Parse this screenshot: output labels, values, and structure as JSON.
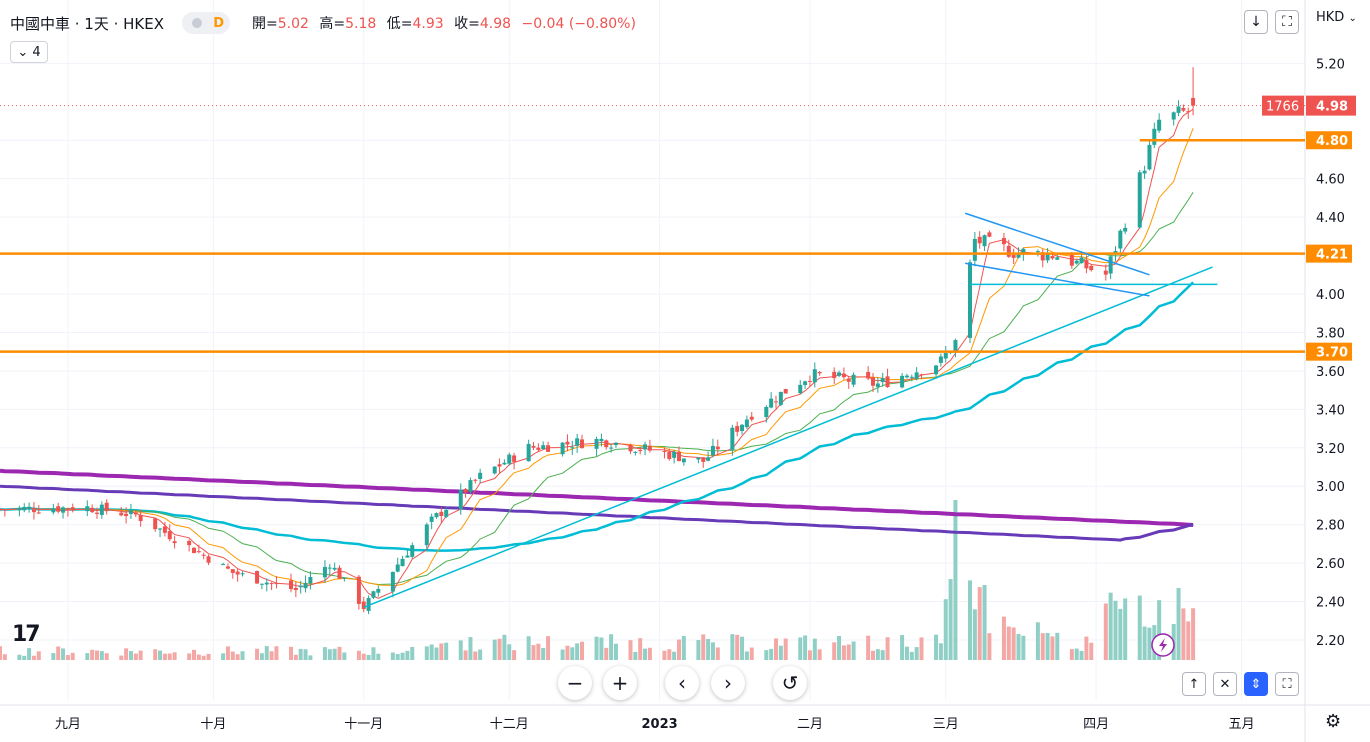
{
  "header": {
    "symbol_title": "中國中車 · 1天 · HKEX",
    "badge_label": "D",
    "open_label": "開=",
    "open_value": "5.02",
    "high_label": "高=",
    "high_value": "5.18",
    "low_label": "低=",
    "low_value": "4.93",
    "close_label": "收=",
    "close_value": "4.98",
    "change_value": "−0.04 (−0.80%)",
    "indicator_count": "4",
    "currency": "HKD"
  },
  "price_tags": {
    "countdown": "1766",
    "last_price": "4.98",
    "levels": [
      {
        "value": 4.8,
        "label": "4.80"
      },
      {
        "value": 4.21,
        "label": "4.21"
      },
      {
        "value": 3.7,
        "label": "3.70"
      }
    ]
  },
  "colors": {
    "up": "#26a69a",
    "down": "#ef5350",
    "vol_up": "#8fcfc6",
    "vol_down": "#f4a8a6",
    "level": "#ff8c00",
    "ma5": "#ef5350",
    "ma10": "#ff9800",
    "ma20": "#4caf50",
    "ma60": "#00bcd4",
    "ma120": "#673ab7",
    "ma250": "#9c27b0",
    "trend": "#00bcd4",
    "triangle": "#2196f3"
  },
  "icons": {
    "down_arrow": "down-arrow-icon",
    "snapshot": "snapshot-icon",
    "chevron": "chevron-down-icon",
    "zoom_out": "minus-icon",
    "zoom_in": "plus-icon",
    "scroll_left": "chevron-left-icon",
    "scroll_right": "chevron-right-icon",
    "reset": "reset-icon",
    "settings": "gear-icon",
    "logo": "tradingview-logo-icon",
    "flash": "lightning-icon"
  },
  "chart_data": {
    "type": "candlestick",
    "title": "中國中車 · 1天 · HKEX",
    "y_ticks": [
      "5.20",
      "4.80",
      "4.60",
      "4.40",
      "4.00",
      "3.80",
      "3.60",
      "3.40",
      "3.20",
      "3.00",
      "2.80",
      "2.60",
      "2.40",
      "2.20"
    ],
    "x_ticks": [
      "九月",
      "十月",
      "十一月",
      "十二月",
      "2023",
      "二月",
      "三月",
      "四月",
      "五月"
    ],
    "ylim": [
      2.12,
      5.3
    ],
    "grid": true,
    "anchors": [
      {
        "date": "2022-08-18",
        "close": 2.88
      },
      {
        "date": "2022-09-05",
        "close": 2.89
      },
      {
        "date": "2022-09-15",
        "close": 2.85
      },
      {
        "date": "2022-10-05",
        "close": 2.55
      },
      {
        "date": "2022-10-18",
        "close": 2.46
      },
      {
        "date": "2022-10-25",
        "close": 2.6
      },
      {
        "date": "2022-11-01",
        "close": 2.37
      },
      {
        "date": "2022-11-15",
        "close": 2.82
      },
      {
        "date": "2022-11-25",
        "close": 3.05
      },
      {
        "date": "2022-12-05",
        "close": 3.2
      },
      {
        "date": "2022-12-20",
        "close": 3.24
      },
      {
        "date": "2023-01-10",
        "close": 3.13
      },
      {
        "date": "2023-01-20",
        "close": 3.38
      },
      {
        "date": "2023-02-01",
        "close": 3.58
      },
      {
        "date": "2023-02-15",
        "close": 3.53
      },
      {
        "date": "2023-02-28",
        "close": 3.65
      },
      {
        "date": "2023-03-03",
        "close": 3.75
      },
      {
        "date": "2023-03-07",
        "close": 4.28
      },
      {
        "date": "2023-03-15",
        "close": 4.22
      },
      {
        "date": "2023-03-24",
        "close": 4.2
      },
      {
        "date": "2023-04-03",
        "close": 4.1
      },
      {
        "date": "2023-04-10",
        "close": 4.6
      },
      {
        "date": "2023-04-14",
        "close": 4.9
      },
      {
        "date": "2023-04-20",
        "close": 4.95
      }
    ],
    "last_candle": {
      "open": 5.02,
      "high": 5.18,
      "low": 4.93,
      "close": 4.98
    },
    "volume_spike_date": "2023-03-03",
    "moving_averages": [
      "MA5",
      "MA10",
      "MA20",
      "MA60",
      "MA120",
      "MA250"
    ],
    "trendlines": [
      {
        "from": [
          "2022-11-01",
          2.37
        ],
        "to": [
          "2023-04-25",
          4.14
        ]
      },
      {
        "from": [
          "2023-03-06",
          4.05
        ],
        "to": [
          "2023-04-26",
          4.05
        ]
      }
    ],
    "triangle": [
      {
        "from": [
          "2023-03-05",
          4.42
        ],
        "to": [
          "2023-04-12",
          4.1
        ]
      },
      {
        "from": [
          "2023-03-05",
          4.16
        ],
        "to": [
          "2023-04-12",
          3.99
        ]
      }
    ],
    "horizontal_levels": [
      4.8,
      4.21,
      3.7
    ]
  }
}
